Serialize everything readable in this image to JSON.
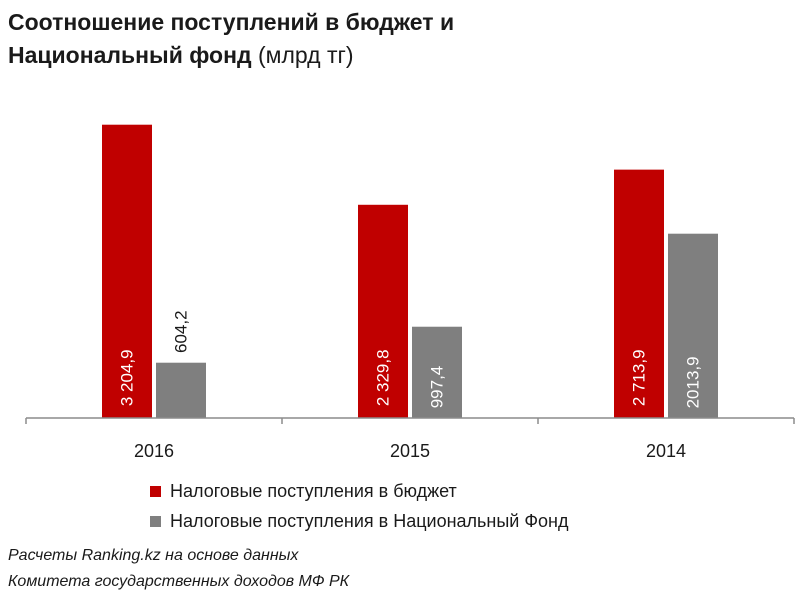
{
  "chart_data": {
    "type": "bar",
    "title_bold_line1": "Соотношение поступлений в бюджет и",
    "title_bold_line2": "Национальный фонд",
    "title_unit": "(млрд тг)",
    "categories": [
      "2016",
      "2015",
      "2014"
    ],
    "series": [
      {
        "name": "Налоговые поступления в бюджет",
        "color": "#c00000",
        "values": [
          3204.9,
          2329.8,
          2713.9
        ],
        "labels": [
          "3 204,9",
          "2 329,8",
          "2 713,9"
        ]
      },
      {
        "name": "Налоговые поступления в Национальный Фонд",
        "color": "#7f7f7f",
        "values": [
          604.2,
          997.4,
          2013.9
        ],
        "labels": [
          "604,2",
          "997,4",
          "2013,9"
        ]
      }
    ],
    "ylim": [
      0,
      3300
    ],
    "xlabel": "",
    "ylabel": "",
    "grid": false,
    "legend_position": "bottom"
  },
  "source": {
    "line1": "Расчеты Ranking.kz на основе данных",
    "line2": "Комитета государственных доходов  МФ РК"
  },
  "colors": {
    "axis": "#8c8c8c",
    "label_inside": "#ffffff",
    "label_outside": "#1a1a1a"
  }
}
